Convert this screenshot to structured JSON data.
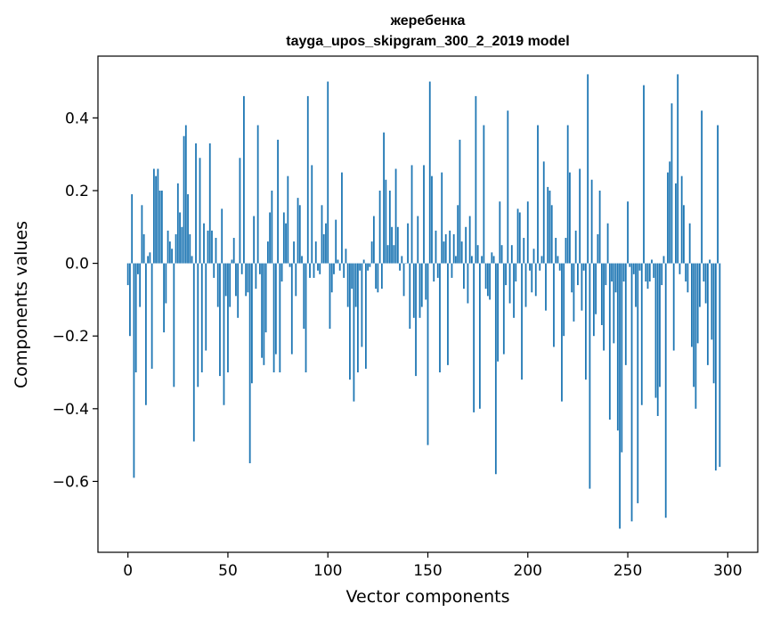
{
  "chart_data": {
    "type": "bar",
    "title": "жеребенка",
    "subtitle": "tayga_upos_skipgram_300_2_2019 model",
    "xlabel": "Vector components",
    "ylabel": "Components values",
    "xlim": [
      -15,
      315
    ],
    "ylim": [
      -0.795,
      0.57
    ],
    "xticks": [
      0,
      50,
      100,
      150,
      200,
      250,
      300
    ],
    "xtick_labels": [
      "0",
      "50",
      "100",
      "150",
      "200",
      "250",
      "300"
    ],
    "yticks": [
      -0.6,
      -0.4,
      -0.2,
      0.0,
      0.2,
      0.4
    ],
    "ytick_labels": [
      "−0.6",
      "−0.4",
      "−0.2",
      "0.0",
      "0.2",
      "0.4"
    ],
    "grid": false,
    "bar_color": "#1f77b4",
    "x": "0..299",
    "values": [
      -0.06,
      -0.2,
      0.19,
      -0.59,
      -0.3,
      -0.03,
      -0.12,
      0.16,
      0.08,
      -0.39,
      0.02,
      0.03,
      -0.29,
      0.26,
      0.24,
      0.26,
      0.2,
      0.2,
      -0.19,
      -0.11,
      0.09,
      0.06,
      0.04,
      -0.34,
      0.08,
      0.22,
      0.14,
      0.1,
      0.35,
      0.38,
      0.19,
      0.08,
      0.02,
      -0.49,
      0.33,
      -0.34,
      0.29,
      -0.3,
      0.11,
      -0.24,
      0.09,
      0.33,
      0.09,
      -0.04,
      0.07,
      -0.12,
      -0.31,
      0.15,
      -0.39,
      -0.09,
      -0.3,
      -0.12,
      0.01,
      0.07,
      -0.09,
      -0.15,
      0.29,
      -0.03,
      0.46,
      -0.09,
      -0.08,
      -0.55,
      -0.33,
      0.13,
      -0.07,
      0.38,
      -0.03,
      -0.26,
      -0.28,
      -0.19,
      0.06,
      0.14,
      0.2,
      -0.3,
      -0.25,
      0.34,
      -0.3,
      -0.05,
      0.14,
      0.11,
      0.24,
      -0.01,
      -0.25,
      0.06,
      -0.09,
      0.18,
      0.16,
      0.02,
      -0.18,
      -0.3,
      0.46,
      -0.04,
      0.27,
      -0.04,
      0.06,
      -0.02,
      -0.03,
      0.16,
      0.08,
      0.11,
      0.5,
      -0.18,
      -0.08,
      -0.03,
      0.12,
      0.01,
      -0.02,
      0.25,
      -0.04,
      0.04,
      -0.12,
      -0.32,
      -0.07,
      -0.38,
      -0.12,
      -0.3,
      -0.02,
      -0.23,
      0.01,
      -0.29,
      -0.02,
      -0.01,
      0.06,
      0.13,
      -0.07,
      -0.08,
      0.2,
      -0.07,
      0.36,
      0.23,
      0.05,
      0.2,
      0.1,
      0.05,
      0.26,
      0.1,
      -0.02,
      0.02,
      -0.09,
      0.0,
      0.11,
      -0.18,
      0.27,
      -0.15,
      -0.31,
      0.13,
      -0.15,
      -0.12,
      0.27,
      -0.1,
      -0.5,
      0.5,
      0.24,
      -0.05,
      0.09,
      -0.04,
      -0.3,
      0.25,
      0.06,
      0.08,
      -0.28,
      0.09,
      -0.04,
      0.08,
      0.02,
      0.16,
      0.34,
      0.06,
      -0.07,
      0.1,
      -0.11,
      0.13,
      0.02,
      -0.41,
      0.46,
      0.05,
      -0.4,
      0.02,
      0.38,
      -0.07,
      -0.09,
      -0.1,
      0.03,
      0.02,
      -0.58,
      -0.27,
      0.17,
      0.05,
      -0.25,
      -0.06,
      0.42,
      -0.11,
      0.05,
      -0.15,
      -0.05,
      0.15,
      0.14,
      -0.32,
      0.07,
      -0.12,
      0.17,
      -0.02,
      -0.08,
      0.04,
      -0.09,
      0.38,
      -0.02,
      0.02,
      0.28,
      -0.13,
      0.21,
      0.2,
      0.16,
      -0.23,
      0.07,
      0.02,
      -0.02,
      -0.38,
      -0.2,
      0.07,
      0.38,
      0.25,
      -0.08,
      -0.16,
      0.09,
      -0.06,
      0.26,
      -0.13,
      -0.02,
      -0.32,
      0.52,
      -0.62,
      0.23,
      -0.2,
      -0.14,
      0.08,
      0.2,
      -0.17,
      -0.24,
      -0.06,
      0.11,
      -0.43,
      -0.05,
      -0.22,
      -0.08,
      -0.46,
      -0.73,
      -0.52,
      -0.05,
      -0.28,
      0.17,
      -0.01,
      -0.71,
      -0.03,
      -0.12,
      -0.66,
      -0.02,
      -0.39,
      0.49,
      -0.05,
      -0.07,
      -0.05,
      0.01,
      -0.04,
      -0.37,
      -0.42,
      -0.34,
      -0.06,
      0.02,
      -0.7,
      0.25,
      0.28,
      0.44,
      -0.24,
      0.22,
      0.52,
      -0.03,
      0.24,
      0.16,
      -0.05,
      -0.08,
      0.11,
      -0.23,
      -0.34,
      -0.4,
      -0.22,
      -0.12,
      0.42,
      -0.05,
      -0.11,
      -0.28,
      0.01,
      -0.21,
      -0.33,
      -0.57,
      0.38,
      -0.56
    ]
  }
}
